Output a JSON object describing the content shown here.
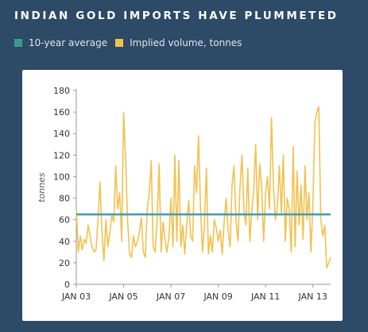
{
  "title": "INDIAN GOLD IMPORTS HAVE PLUMMETED",
  "legend": {
    "average_label": "10-year average",
    "volume_label": "Implied volume, tonnes"
  },
  "colors": {
    "background": "#2d4a67",
    "average": "#4a9ab5",
    "volume": "#f2c14e",
    "average_swatch": "#3b9a8f",
    "axis_text": "#333333"
  },
  "chart_data": {
    "type": "line",
    "title": "INDIAN GOLD IMPORTS HAVE PLUMMETED",
    "xlabel": "",
    "ylabel": "tonnes",
    "ylim": [
      0,
      180
    ],
    "xlim": [
      "2003-01",
      "2013-10"
    ],
    "grid": false,
    "legend_position": "top-left",
    "y_ticks": [
      0,
      20,
      40,
      60,
      80,
      100,
      120,
      140,
      160,
      180
    ],
    "x_ticks": [
      "JAN 03",
      "JAN 05",
      "JAN 07",
      "JAN 09",
      "JAN 11",
      "JAN 13"
    ],
    "x_tick_dates": [
      "2003-01",
      "2005-01",
      "2007-01",
      "2009-01",
      "2011-01",
      "2013-01"
    ],
    "series": [
      {
        "name": "10-year average",
        "x": [
          "2003-01",
          "2013-10"
        ],
        "values": [
          65,
          65
        ]
      },
      {
        "name": "Implied volume, tonnes",
        "x": [
          "2003-01",
          "2003-02",
          "2003-03",
          "2003-04",
          "2003-05",
          "2003-06",
          "2003-07",
          "2003-08",
          "2003-09",
          "2003-10",
          "2003-11",
          "2003-12",
          "2004-01",
          "2004-02",
          "2004-03",
          "2004-04",
          "2004-05",
          "2004-06",
          "2004-07",
          "2004-08",
          "2004-09",
          "2004-10",
          "2004-11",
          "2004-12",
          "2005-01",
          "2005-02",
          "2005-03",
          "2005-04",
          "2005-05",
          "2005-06",
          "2005-07",
          "2005-08",
          "2005-09",
          "2005-10",
          "2005-11",
          "2005-12",
          "2006-01",
          "2006-02",
          "2006-03",
          "2006-04",
          "2006-05",
          "2006-06",
          "2006-07",
          "2006-08",
          "2006-09",
          "2006-10",
          "2006-11",
          "2006-12",
          "2007-01",
          "2007-02",
          "2007-03",
          "2007-04",
          "2007-05",
          "2007-06",
          "2007-07",
          "2007-08",
          "2007-09",
          "2007-10",
          "2007-11",
          "2007-12",
          "2008-01",
          "2008-02",
          "2008-03",
          "2008-04",
          "2008-05",
          "2008-06",
          "2008-07",
          "2008-08",
          "2008-09",
          "2008-10",
          "2008-11",
          "2008-12",
          "2009-01",
          "2009-02",
          "2009-03",
          "2009-04",
          "2009-05",
          "2009-06",
          "2009-07",
          "2009-08",
          "2009-09",
          "2009-10",
          "2009-11",
          "2009-12",
          "2010-01",
          "2010-02",
          "2010-03",
          "2010-04",
          "2010-05",
          "2010-06",
          "2010-07",
          "2010-08",
          "2010-09",
          "2010-10",
          "2010-11",
          "2010-12",
          "2011-01",
          "2011-02",
          "2011-03",
          "2011-04",
          "2011-05",
          "2011-06",
          "2011-07",
          "2011-08",
          "2011-09",
          "2011-10",
          "2011-11",
          "2011-12",
          "2012-01",
          "2012-02",
          "2012-03",
          "2012-04",
          "2012-05",
          "2012-06",
          "2012-07",
          "2012-08",
          "2012-09",
          "2012-10",
          "2012-11",
          "2012-12",
          "2013-01",
          "2013-02",
          "2013-03",
          "2013-04",
          "2013-05",
          "2013-06",
          "2013-07",
          "2013-08",
          "2013-09",
          "2013-10"
        ],
        "values": [
          70,
          30,
          45,
          32,
          42,
          38,
          55,
          45,
          35,
          30,
          32,
          60,
          95,
          50,
          22,
          60,
          35,
          48,
          65,
          58,
          110,
          70,
          85,
          40,
          160,
          118,
          60,
          28,
          25,
          45,
          35,
          40,
          48,
          62,
          30,
          25,
          70,
          85,
          115,
          35,
          30,
          60,
          112,
          30,
          58,
          42,
          30,
          45,
          80,
          35,
          120,
          40,
          115,
          35,
          55,
          28,
          55,
          78,
          45,
          40,
          110,
          85,
          138,
          70,
          30,
          55,
          108,
          28,
          45,
          30,
          60,
          52,
          40,
          50,
          28,
          58,
          80,
          50,
          35,
          92,
          110,
          60,
          40,
          90,
          120,
          70,
          55,
          108,
          40,
          68,
          88,
          130,
          60,
          112,
          90,
          40,
          85,
          100,
          70,
          155,
          90,
          60,
          72,
          110,
          65,
          120,
          40,
          80,
          70,
          30,
          128,
          35,
          105,
          55,
          92,
          42,
          110,
          60,
          85,
          30,
          75,
          150,
          160,
          165,
          60,
          45,
          55,
          15,
          20,
          25
        ]
      }
    ]
  }
}
